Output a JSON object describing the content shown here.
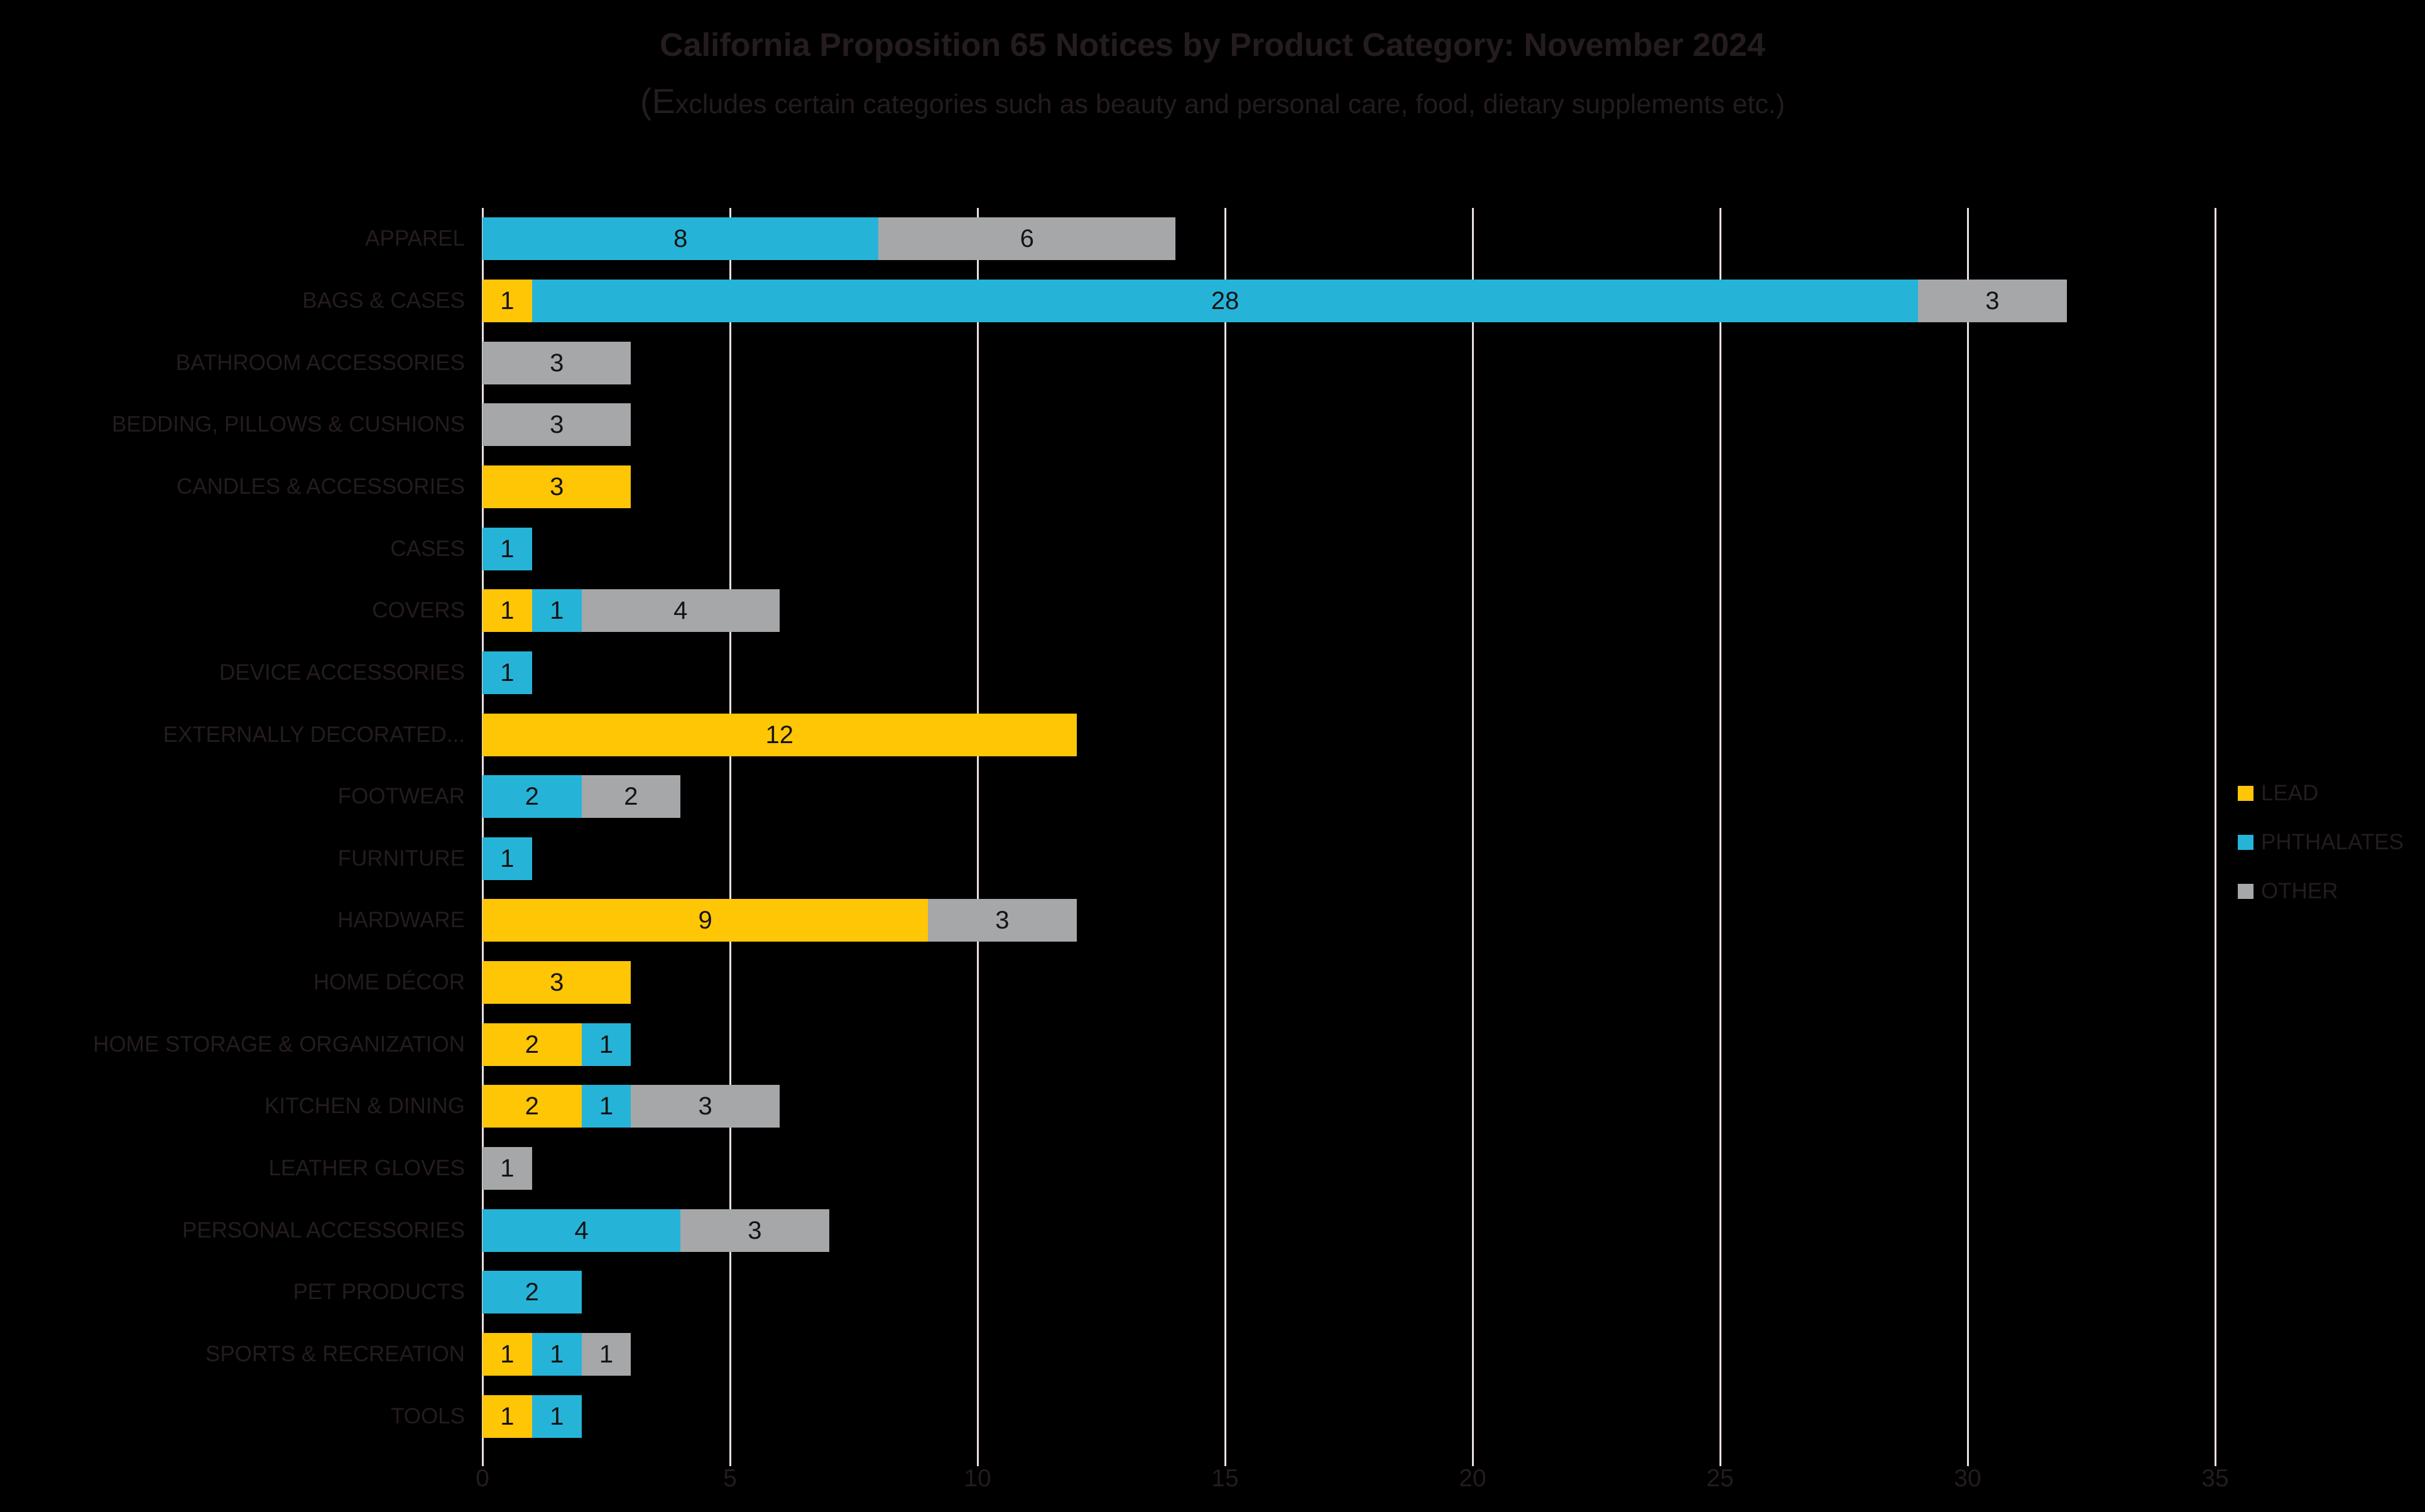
{
  "title": "California Proposition 65 Notices by Product Category: November 2024",
  "subtitle": "(Excludes certain categories such as beauty and personal care, food, dietary supplements etc.)",
  "colors": {
    "lead": "#FFC605",
    "phthalates": "#25B4D8",
    "other": "#A5A7A9",
    "gridline": "#EADFE3",
    "title_text": "#241C1E",
    "label_text": "#241C1E",
    "value_text": "#161314",
    "background": "#000000"
  },
  "legend": [
    {
      "key": "lead",
      "label": "LEAD"
    },
    {
      "key": "phthalates",
      "label": "PHTHALATES"
    },
    {
      "key": "other",
      "label": "OTHER"
    }
  ],
  "chart_data": {
    "type": "bar",
    "orientation": "horizontal",
    "stacked": true,
    "grid": true,
    "legend_position": "right",
    "xlim": [
      0,
      35
    ],
    "x_ticks": [
      0,
      5,
      10,
      15,
      20,
      25,
      30,
      35
    ],
    "categories": [
      "APPAREL",
      "BAGS & CASES",
      "BATHROOM ACCESSORIES",
      "BEDDING, PILLOWS & CUSHIONS",
      "CANDLES & ACCESSORIES",
      "CASES",
      "COVERS",
      "DEVICE ACCESSORIES",
      "EXTERNALLY DECORATED...",
      "FOOTWEAR",
      "FURNITURE",
      "HARDWARE",
      "HOME DÉCOR",
      "HOME STORAGE & ORGANIZATION",
      "KITCHEN & DINING",
      "LEATHER GLOVES",
      "PERSONAL ACCESSORIES",
      "PET PRODUCTS",
      "SPORTS & RECREATION",
      "TOOLS"
    ],
    "series": [
      {
        "key": "lead",
        "name": "LEAD",
        "values": [
          0,
          1,
          0,
          0,
          3,
          0,
          1,
          0,
          12,
          0,
          0,
          9,
          3,
          2,
          2,
          0,
          0,
          0,
          1,
          1
        ]
      },
      {
        "key": "phthalates",
        "name": "PHTHALATES",
        "values": [
          8,
          28,
          0,
          0,
          0,
          1,
          1,
          1,
          0,
          2,
          1,
          0,
          0,
          1,
          1,
          0,
          4,
          2,
          1,
          1
        ]
      },
      {
        "key": "other",
        "name": "OTHER",
        "values": [
          6,
          3,
          3,
          3,
          0,
          0,
          4,
          0,
          0,
          2,
          0,
          3,
          0,
          0,
          3,
          1,
          3,
          0,
          1,
          0
        ]
      }
    ]
  }
}
